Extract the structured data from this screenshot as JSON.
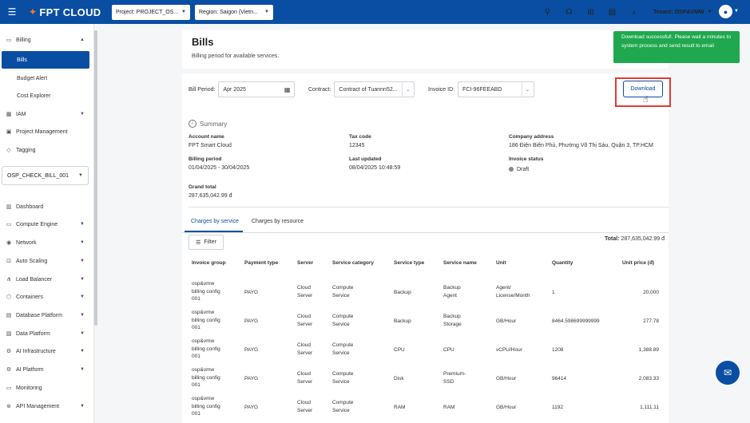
{
  "header": {
    "logo_text": "FPT CLOUD",
    "project_select": "Project: PROJECT_OS...",
    "region_select": "Region: Saigon (Vietn...",
    "tenant": "Tenant: OSP&VMW",
    "icons": [
      "rocket-icon",
      "support-icon",
      "apps-icon",
      "notes-icon",
      "bell-icon"
    ]
  },
  "sidebar": {
    "items": [
      {
        "label": "Billing",
        "icon": "billing-icon",
        "expanded": true
      },
      {
        "label": "IAM",
        "icon": "iam-icon"
      },
      {
        "label": "Project Management",
        "icon": "project-icon"
      },
      {
        "label": "Tagging",
        "icon": "tag-icon"
      }
    ],
    "billing_sub": [
      "Bills",
      "Budget Alert",
      "Cost Explorer"
    ],
    "project_select": "OSP_CHECK_BILL_001",
    "services": [
      "Dashboard",
      "Compute Engine",
      "Network",
      "Auto Scaling",
      "Load Balancer",
      "Containers",
      "Database Platform",
      "Data Platform",
      "AI Infrastructure",
      "AI Platform",
      "Monitoring",
      "API Management"
    ]
  },
  "page": {
    "title": "Bills",
    "subtitle": "Billing period for available services."
  },
  "filters": {
    "bill_period_label": "Bill Period:",
    "bill_period_value": "Apr 2025",
    "contract_label": "Contract:",
    "contract_value": "Contract of Tuannn52...",
    "invoice_id_label": "Invoice ID:",
    "invoice_id_value": "FCI-96FEEABD",
    "download_label": "Download"
  },
  "toast": {
    "message": "Download successful!. Please wait a minutes to system process and send result to email",
    "color": "#1fa84f"
  },
  "summary": {
    "title": "Summary",
    "account_name_label": "Account name",
    "account_name": "FPT Smart Cloud",
    "tax_code_label": "Tax code",
    "tax_code": "12345",
    "company_address_label": "Company address",
    "company_address": "186 Điện Biên Phủ, Phường Võ Thị Sáu, Quận 3, TP.HCM",
    "billing_period_label": "Billing period",
    "billing_period": "01/04/2025 - 30/04/2025",
    "last_updated_label": "Last updated",
    "last_updated": "08/04/2025 10:48:59",
    "invoice_status_label": "Invoice status",
    "invoice_status": "Draft",
    "grand_total_label": "Grand total",
    "grand_total": "287,635,042.99 đ"
  },
  "tabs": [
    "Charges by service",
    "Charges by resource"
  ],
  "table": {
    "filter_label": "Filter",
    "total_label": "Total:",
    "total_value": "287,635,042.99 đ",
    "columns": [
      "Invoice group",
      "Payment type",
      "Server",
      "Service category",
      "Service type",
      "Service name",
      "Unit",
      "Quantity",
      "Unit price (đ)"
    ],
    "rows": [
      {
        "group": "osp&vmw billing config 001",
        "payment": "PAYG",
        "server": "Cloud Server",
        "category": "Compute Service",
        "type": "Backup",
        "name": "Backup Agent",
        "unit": "Agent/ License/Month",
        "qty": "1",
        "price": "20,000"
      },
      {
        "group": "osp&vmw billing config 001",
        "payment": "PAYG",
        "server": "Cloud Server",
        "category": "Compute Service",
        "type": "Backup",
        "name": "Backup Storage",
        "unit": "GB/Hour",
        "qty": "8464.598699999999",
        "price": "277.78"
      },
      {
        "group": "osp&vmw billing config 001",
        "payment": "PAYG",
        "server": "Cloud Server",
        "category": "Compute Service",
        "type": "CPU",
        "name": "CPU",
        "unit": "vCPU/Hour",
        "qty": "1208",
        "price": "1,388.89"
      },
      {
        "group": "osp&vmw billing config 001",
        "payment": "PAYG",
        "server": "Cloud Server",
        "category": "Compute Service",
        "type": "Disk",
        "name": "Premium- SSD",
        "unit": "GB/Hour",
        "qty": "96414",
        "price": "2,083.33"
      },
      {
        "group": "osp&vmw billing config 001",
        "payment": "PAYG",
        "server": "Cloud Server",
        "category": "Compute Service",
        "type": "RAM",
        "name": "RAM",
        "unit": "GB/Hour",
        "qty": "1192",
        "price": "1,111.11"
      }
    ]
  }
}
